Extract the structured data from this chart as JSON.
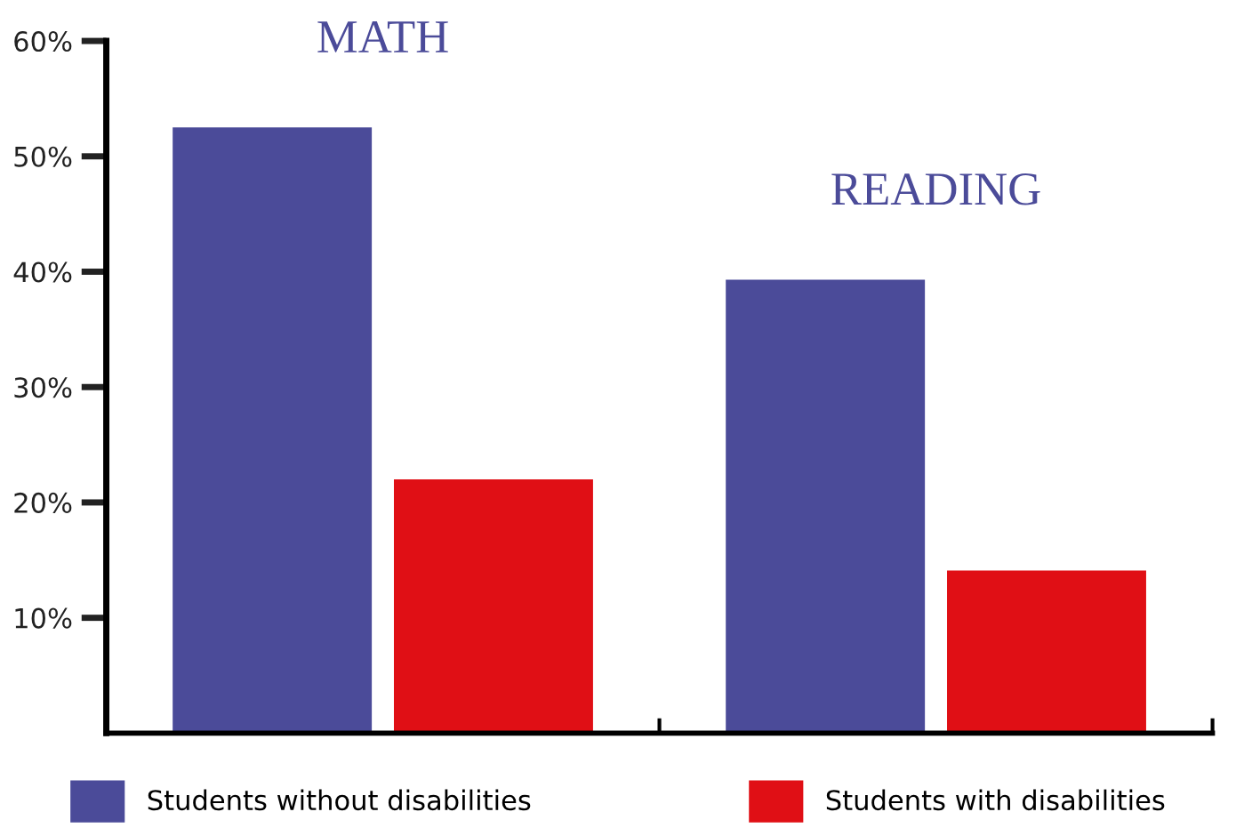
{
  "chart_data": {
    "type": "bar",
    "categories": [
      "MATH",
      "READING"
    ],
    "series": [
      {
        "name": "Students without disabilities",
        "color": "#4b4b99",
        "values": [
          52.5,
          39.3
        ]
      },
      {
        "name": "Students with disabilities",
        "color": "#e00f15",
        "values": [
          22.0,
          14.1
        ]
      }
    ],
    "ylim": [
      0,
      60
    ],
    "yticks": [
      {
        "value": 10,
        "label": "10%"
      },
      {
        "value": 20,
        "label": "20%"
      },
      {
        "value": 30,
        "label": "30%"
      },
      {
        "value": 40,
        "label": "40%"
      },
      {
        "value": 50,
        "label": "50%"
      },
      {
        "value": 60,
        "label": "60%"
      }
    ],
    "grid": false,
    "legend": "bottom"
  }
}
